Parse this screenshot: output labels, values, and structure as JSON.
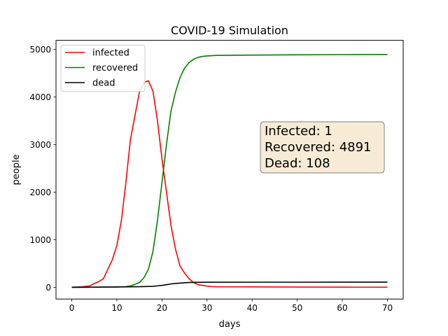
{
  "chart_data": {
    "type": "line",
    "title": "COVID-19 Simulation",
    "xlabel": "days",
    "ylabel": "people",
    "xlim": [
      -3.5,
      73.5
    ],
    "ylim": [
      -247,
      5188
    ],
    "xticks": [
      0,
      10,
      20,
      30,
      40,
      50,
      60,
      70
    ],
    "yticks": [
      0,
      1000,
      2000,
      3000,
      4000,
      5000
    ],
    "grid": false,
    "legend_position": "top-left",
    "series": [
      {
        "name": "infected",
        "color": "#ff0000",
        "x": [
          0,
          2,
          4,
          5,
          6,
          7,
          8,
          9,
          10,
          11,
          12,
          13,
          14,
          15,
          16,
          17,
          18,
          19,
          20,
          21,
          22,
          23,
          24,
          25,
          26,
          27,
          28,
          29,
          30,
          31,
          32,
          40,
          50,
          60,
          70
        ],
        "values": [
          1,
          8,
          30,
          80,
          120,
          180,
          380,
          580,
          880,
          1400,
          2200,
          3100,
          3600,
          4100,
          4300,
          4340,
          4120,
          3500,
          2700,
          2000,
          1300,
          800,
          450,
          300,
          180,
          100,
          55,
          40,
          25,
          15,
          10,
          8,
          5,
          3,
          1
        ]
      },
      {
        "name": "recovered",
        "color": "#008000",
        "x": [
          0,
          10,
          12,
          13,
          14,
          15,
          16,
          17,
          18,
          19,
          20,
          21,
          22,
          23,
          24,
          25,
          26,
          27,
          28,
          29,
          30,
          31,
          32,
          40,
          50,
          60,
          70
        ],
        "values": [
          0,
          5,
          15,
          30,
          60,
          100,
          200,
          380,
          750,
          1400,
          2200,
          3000,
          3700,
          4100,
          4400,
          4600,
          4720,
          4790,
          4830,
          4850,
          4860,
          4865,
          4870,
          4878,
          4884,
          4888,
          4891
        ]
      },
      {
        "name": "dead",
        "color": "#000000",
        "x": [
          0,
          5,
          10,
          15,
          18,
          19,
          20,
          21,
          22,
          23,
          24,
          25,
          26,
          28,
          30,
          40,
          50,
          60,
          70
        ],
        "values": [
          0,
          3,
          7,
          12,
          20,
          30,
          40,
          55,
          70,
          80,
          88,
          95,
          100,
          104,
          106,
          107,
          107,
          108,
          108
        ]
      }
    ],
    "annotation": {
      "lines": [
        "Infected: 1",
        "Recovered: 4891",
        "Dead: 108"
      ],
      "box_color": "#f5e6cc"
    }
  }
}
